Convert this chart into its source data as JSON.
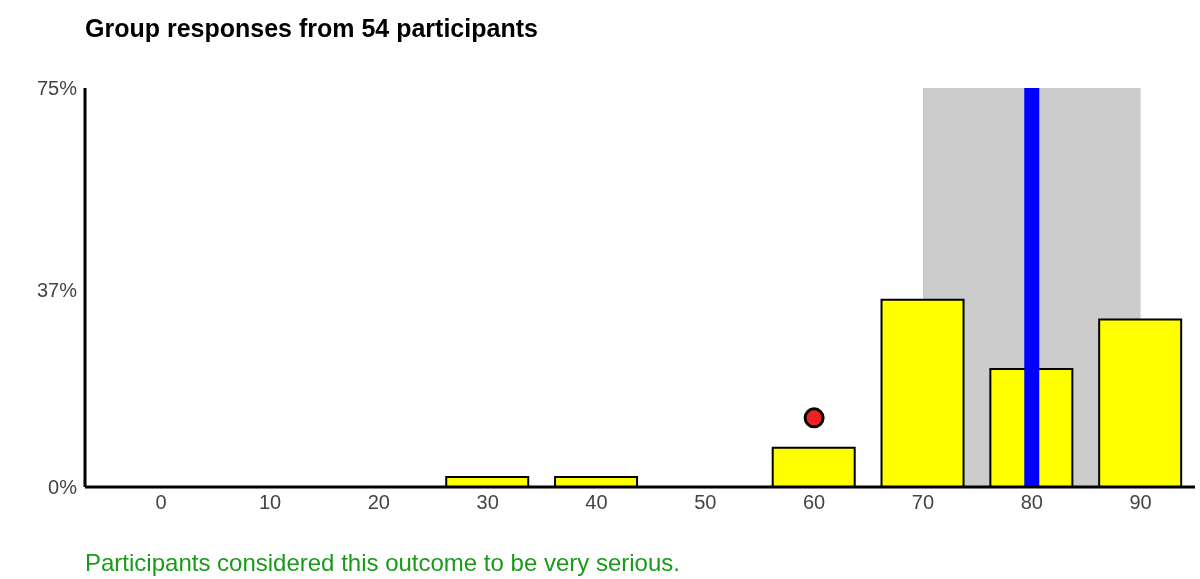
{
  "chart_data": {
    "type": "bar",
    "title": "Group responses from 54 participants",
    "x": [
      0,
      10,
      20,
      30,
      40,
      50,
      60,
      70,
      80,
      90
    ],
    "series": [
      {
        "color": "#ffff00",
        "values": [
          0,
          0,
          0,
          1.9,
          1.9,
          0,
          7.4,
          35.2,
          22.2,
          31.5
        ]
      },
      {
        "type": "scatter",
        "color": "#ee2222",
        "x": [
          60
        ],
        "values": [
          13
        ]
      }
    ],
    "xlim": [
      -7,
      95
    ],
    "xticks": [
      0,
      10,
      20,
      30,
      40,
      50,
      60,
      70,
      80,
      90
    ],
    "ylim": [
      0,
      75
    ],
    "yticks": [
      {
        "value": 0,
        "label": "0%"
      },
      {
        "value": 37,
        "label": "37%"
      },
      {
        "value": 75,
        "label": "75%"
      }
    ],
    "bands": [
      {
        "axis": "x",
        "from": 70,
        "to": 90,
        "color": "#cccccc"
      }
    ],
    "ref_lines": [
      {
        "axis": "x",
        "value": 80,
        "color": "#0000ff"
      }
    ],
    "grid": false,
    "annotations": [
      "Participants considered this outcome to be very serious."
    ]
  }
}
